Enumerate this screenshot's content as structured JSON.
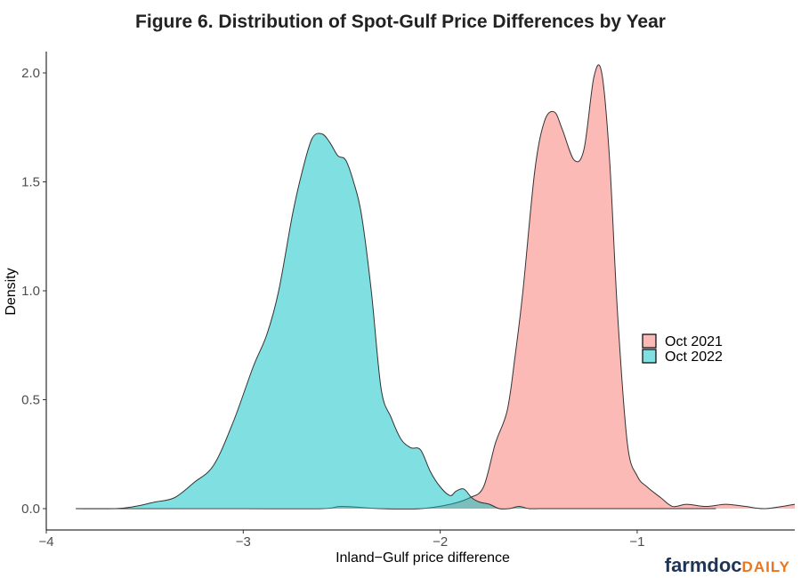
{
  "chart_data": {
    "type": "area",
    "title": "Figure 6. Distribution of Spot-Gulf Price Differences by Year",
    "xlabel": "Inland−Gulf price difference",
    "ylabel": "Density",
    "xlim": [
      -4.0,
      -0.2
    ],
    "ylim": [
      0.0,
      2.0
    ],
    "x_ticks": [
      -4,
      -3,
      -2,
      -1
    ],
    "x_tick_labels": [
      "−4",
      "−3",
      "−2",
      "−1"
    ],
    "y_ticks": [
      0.0,
      0.5,
      1.0,
      1.5,
      2.0
    ],
    "y_tick_labels": [
      "0.0",
      "0.5",
      "1.0",
      "1.5",
      "2.0"
    ],
    "grid": false,
    "legend_position": "right",
    "series": [
      {
        "name": "Oct 2021",
        "color": "#F8766D",
        "x": [
          -3.85,
          -3.5,
          -3.0,
          -2.6,
          -2.5,
          -2.3,
          -2.1,
          -1.95,
          -1.85,
          -1.78,
          -1.72,
          -1.66,
          -1.62,
          -1.58,
          -1.52,
          -1.47,
          -1.42,
          -1.38,
          -1.32,
          -1.27,
          -1.22,
          -1.18,
          -1.14,
          -1.1,
          -1.05,
          -1.0,
          -0.95,
          -0.88,
          -0.82,
          -0.75,
          -0.65,
          -0.55,
          -0.45,
          -0.35,
          -0.2
        ],
        "values": [
          0.0,
          0.0,
          0.0,
          0.0,
          0.01,
          0.0,
          0.0,
          0.02,
          0.05,
          0.1,
          0.3,
          0.45,
          0.7,
          1.0,
          1.55,
          1.78,
          1.82,
          1.74,
          1.6,
          1.65,
          1.98,
          2.0,
          1.6,
          0.9,
          0.3,
          0.15,
          0.1,
          0.05,
          0.01,
          0.02,
          0.01,
          0.02,
          0.01,
          0.0,
          0.02
        ]
      },
      {
        "name": "Oct 2022",
        "color": "#00BFC4",
        "x": [
          -3.85,
          -3.65,
          -3.55,
          -3.45,
          -3.35,
          -3.25,
          -3.15,
          -3.05,
          -2.95,
          -2.88,
          -2.82,
          -2.75,
          -2.7,
          -2.65,
          -2.6,
          -2.56,
          -2.52,
          -2.48,
          -2.44,
          -2.4,
          -2.35,
          -2.3,
          -2.25,
          -2.2,
          -2.15,
          -2.1,
          -2.05,
          -2.0,
          -1.95,
          -1.92,
          -1.88,
          -1.84,
          -1.8,
          -1.75,
          -1.7,
          -1.65,
          -1.6,
          -1.55,
          -1.5,
          -1.45,
          -1.4,
          -1.3,
          -1.2,
          -1.1,
          -1.0,
          -0.9,
          -0.8,
          -0.7,
          -0.6
        ],
        "values": [
          0.0,
          0.0,
          0.01,
          0.03,
          0.05,
          0.12,
          0.2,
          0.4,
          0.65,
          0.8,
          1.0,
          1.35,
          1.55,
          1.7,
          1.72,
          1.68,
          1.62,
          1.6,
          1.5,
          1.35,
          1.0,
          0.55,
          0.42,
          0.32,
          0.28,
          0.27,
          0.17,
          0.1,
          0.06,
          0.08,
          0.09,
          0.05,
          0.03,
          0.02,
          0.0,
          0.0,
          0.01,
          0.0,
          0.0,
          0.0,
          0.0,
          0.0,
          0.0,
          0.0,
          0.0,
          0.0,
          0.0,
          0.0,
          0.0
        ]
      }
    ]
  },
  "logo": {
    "part1": "farmdoc",
    "part2": "DAILY"
  }
}
